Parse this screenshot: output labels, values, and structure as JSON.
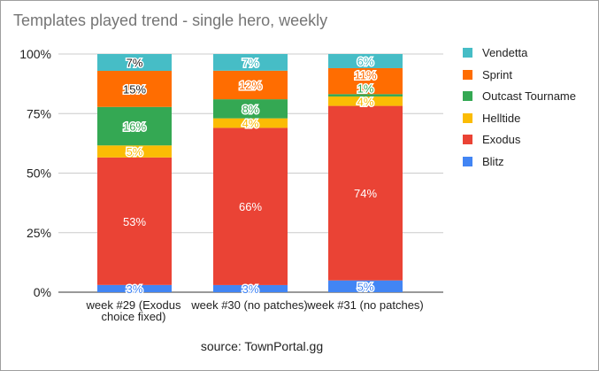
{
  "title": "Templates played trend - single hero, weekly",
  "source_note": "source: TownPortal.gg",
  "colors": {
    "Vendetta": "#46bdc6",
    "Sprint": "#ff6d01",
    "Outcast Tourname": "#34a853",
    "Helltide": "#fbbc04",
    "Exodus": "#ea4335",
    "Blitz": "#4285f4"
  },
  "chart_data": {
    "type": "bar",
    "stacked": true,
    "normalized_percent": true,
    "title": "Templates played trend - single hero, weekly",
    "xlabel": "",
    "ylabel": "",
    "ylim": [
      0,
      100
    ],
    "y_ticks": [
      "0%",
      "25%",
      "50%",
      "75%",
      "100%"
    ],
    "grid": true,
    "legend_position": "right",
    "categories": [
      "week #29 (Exodus choice fixed)",
      "week #30 (no patches)",
      "week #31 (no patches)"
    ],
    "series": [
      {
        "name": "Blitz",
        "values": [
          3,
          3,
          5
        ],
        "labels": [
          "3%",
          "3%",
          "5%"
        ]
      },
      {
        "name": "Exodus",
        "values": [
          53,
          66,
          74
        ],
        "labels": [
          "53%",
          "66%",
          "74%"
        ]
      },
      {
        "name": "Helltide",
        "values": [
          5,
          4,
          4
        ],
        "labels": [
          "5%",
          "4%",
          "4%"
        ]
      },
      {
        "name": "Outcast Tourname",
        "values": [
          16,
          8,
          1
        ],
        "labels": [
          "16%",
          "8%",
          "1%"
        ]
      },
      {
        "name": "Sprint",
        "values": [
          15,
          12,
          11
        ],
        "labels": [
          "15%",
          "12%",
          "11%"
        ]
      },
      {
        "name": "Vendetta",
        "values": [
          7,
          7,
          6
        ],
        "labels": [
          "7%",
          "7%",
          "6%"
        ]
      }
    ]
  }
}
